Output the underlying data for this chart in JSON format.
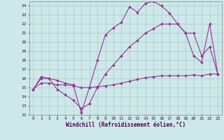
{
  "bg_color": "#cce8e8",
  "line_color": "#993399",
  "grid_color": "#aacccc",
  "xlabel": "Windchill (Refroidissement éolien,°C)",
  "xlim": [
    -0.5,
    23.5
  ],
  "ylim": [
    12,
    24.5
  ],
  "yticks": [
    12,
    13,
    14,
    15,
    16,
    17,
    18,
    19,
    20,
    21,
    22,
    23,
    24
  ],
  "xticks": [
    0,
    1,
    2,
    3,
    4,
    5,
    6,
    7,
    8,
    9,
    10,
    11,
    12,
    13,
    14,
    15,
    16,
    17,
    18,
    19,
    20,
    21,
    22,
    23
  ],
  "line1_x": [
    0,
    1,
    2,
    3,
    4,
    5,
    6,
    7,
    8,
    9,
    10,
    11,
    12,
    13,
    14,
    15,
    16,
    17,
    18,
    19,
    20,
    21,
    22,
    23
  ],
  "line1_y": [
    14.8,
    16.2,
    16.0,
    15.8,
    15.5,
    15.3,
    12.2,
    15.0,
    18.0,
    20.8,
    21.6,
    22.2,
    23.9,
    23.3,
    24.3,
    24.5,
    24.0,
    23.2,
    22.0,
    21.0,
    18.5,
    17.8,
    22.0,
    16.5
  ],
  "line2_x": [
    0,
    1,
    2,
    3,
    4,
    5,
    6,
    7,
    8,
    9,
    10,
    11,
    12,
    13,
    14,
    15,
    16,
    17,
    18,
    19,
    20,
    21,
    22,
    23
  ],
  "line2_y": [
    14.8,
    16.0,
    16.0,
    14.8,
    14.2,
    13.6,
    12.7,
    13.2,
    15.0,
    16.5,
    17.5,
    18.5,
    19.5,
    20.2,
    21.0,
    21.5,
    22.0,
    22.0,
    22.0,
    21.0,
    21.0,
    18.5,
    19.5,
    16.5
  ],
  "line3_x": [
    0,
    1,
    2,
    3,
    4,
    5,
    6,
    7,
    8,
    9,
    10,
    11,
    12,
    13,
    14,
    15,
    16,
    17,
    18,
    19,
    20,
    21,
    22,
    23
  ],
  "line3_y": [
    14.8,
    15.5,
    15.5,
    15.3,
    15.3,
    15.2,
    15.0,
    15.0,
    15.1,
    15.2,
    15.3,
    15.5,
    15.7,
    15.9,
    16.1,
    16.2,
    16.3,
    16.3,
    16.3,
    16.3,
    16.4,
    16.3,
    16.5,
    16.5
  ],
  "markersize": 2.0,
  "linewidth": 0.8,
  "tick_fontsize": 4.5,
  "label_fontsize": 5.5
}
